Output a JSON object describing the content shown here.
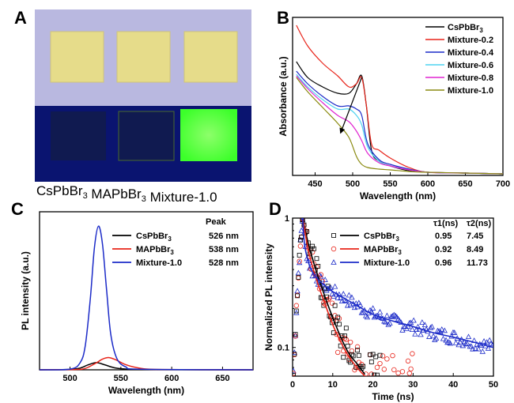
{
  "photo": {
    "panel_label": "A",
    "caption": "CsPbBr3 MAPbBr3 Mixture-1.0",
    "caption_parts": [
      {
        "text": "CsPbBr",
        "sub": "3"
      },
      {
        "text": " MAPbBr",
        "sub": "3"
      },
      {
        "text": " Mixture-1.0",
        "sub": ""
      }
    ],
    "colors": {
      "daylight_background": "#b9b8e0",
      "film_daylight": "#e6dc8a",
      "uv_background": "#0a1470",
      "film_uv_dark": "#101a50",
      "film_uv_green": "#3cff2a"
    }
  },
  "chart_data": [
    {
      "panel": "B",
      "type": "line",
      "xlabel": "Wavelength (nm)",
      "ylabel": "Absorbance (a.u.)",
      "xlim": [
        420,
        700
      ],
      "ylim": [
        0,
        1
      ],
      "xticks": [
        450,
        500,
        550,
        600,
        650,
        700
      ],
      "yticks": [],
      "legend_position": "top-right",
      "annotation": "arrow from the 512 nm peak down to ~485 nm",
      "series": [
        {
          "name": "CsPbBr3",
          "color": "#000000",
          "x": [
            425,
            440,
            460,
            480,
            495,
            505,
            512,
            518,
            525,
            535,
            550,
            575,
            600,
            650,
            700
          ],
          "y": [
            0.72,
            0.62,
            0.56,
            0.52,
            0.52,
            0.58,
            0.63,
            0.45,
            0.16,
            0.09,
            0.06,
            0.03,
            0.02,
            0.015,
            0.01
          ]
        },
        {
          "name": "Mixture-0.2",
          "color": "#e8241a",
          "x": [
            425,
            440,
            460,
            480,
            495,
            505,
            512,
            518,
            525,
            535,
            550,
            575,
            600,
            650,
            700
          ],
          "y": [
            0.95,
            0.82,
            0.71,
            0.63,
            0.56,
            0.58,
            0.62,
            0.45,
            0.2,
            0.16,
            0.11,
            0.05,
            0.02,
            0.015,
            0.01
          ]
        },
        {
          "name": "Mixture-0.4",
          "color": "#1c2bc8",
          "x": [
            425,
            440,
            460,
            480,
            495,
            505,
            512,
            520,
            535,
            550,
            575,
            600,
            650,
            700
          ],
          "y": [
            0.66,
            0.58,
            0.5,
            0.44,
            0.44,
            0.42,
            0.38,
            0.2,
            0.1,
            0.07,
            0.04,
            0.02,
            0.015,
            0.01
          ]
        },
        {
          "name": "Mixture-0.6",
          "color": "#4fd3f0",
          "x": [
            425,
            440,
            460,
            480,
            495,
            505,
            512,
            520,
            535,
            550,
            575,
            600,
            650,
            700
          ],
          "y": [
            0.64,
            0.56,
            0.48,
            0.42,
            0.42,
            0.38,
            0.32,
            0.18,
            0.09,
            0.06,
            0.035,
            0.02,
            0.015,
            0.01
          ]
        },
        {
          "name": "Mixture-0.8",
          "color": "#e025d0",
          "x": [
            425,
            440,
            460,
            480,
            495,
            505,
            512,
            520,
            535,
            550,
            575,
            600,
            650,
            700
          ],
          "y": [
            0.63,
            0.55,
            0.46,
            0.38,
            0.34,
            0.28,
            0.22,
            0.14,
            0.08,
            0.06,
            0.035,
            0.02,
            0.015,
            0.01
          ]
        },
        {
          "name": "Mixture-1.0",
          "color": "#8a8a10",
          "x": [
            425,
            440,
            460,
            480,
            495,
            505,
            512,
            520,
            535,
            550,
            575,
            600,
            650,
            700
          ],
          "y": [
            0.62,
            0.53,
            0.43,
            0.33,
            0.24,
            0.12,
            0.07,
            0.05,
            0.04,
            0.035,
            0.025,
            0.02,
            0.015,
            0.01
          ]
        }
      ]
    },
    {
      "panel": "C",
      "type": "line",
      "xlabel": "Wavelength (nm)",
      "ylabel": "PL intensity (a.u.)",
      "xlim": [
        470,
        680
      ],
      "ylim": [
        0,
        1.1
      ],
      "xticks": [
        500,
        550,
        600,
        650
      ],
      "yticks": [],
      "legend_position": "top-right",
      "legend_header": "Peak",
      "series": [
        {
          "name": "CsPbBr3",
          "peak": "526 nm",
          "color": "#000000",
          "x": [
            470,
            500,
            510,
            518,
            526,
            534,
            545,
            560,
            580,
            680
          ],
          "y": [
            0.0,
            0.003,
            0.012,
            0.035,
            0.05,
            0.035,
            0.012,
            0.003,
            0.001,
            0.0
          ]
        },
        {
          "name": "MAPbBr3",
          "peak": "538 nm",
          "color": "#e8241a",
          "x": [
            470,
            505,
            515,
            525,
            532,
            538,
            545,
            555,
            570,
            590,
            680
          ],
          "y": [
            0.0,
            0.002,
            0.01,
            0.045,
            0.075,
            0.085,
            0.07,
            0.035,
            0.01,
            0.002,
            0.0
          ]
        },
        {
          "name": "Mixture-1.0",
          "peak": "528 nm",
          "color": "#1c2bc8",
          "x": [
            470,
            500,
            510,
            515,
            520,
            524,
            528,
            532,
            536,
            540,
            546,
            555,
            570,
            680
          ],
          "y": [
            0.0,
            0.005,
            0.05,
            0.17,
            0.5,
            0.85,
            1.0,
            0.87,
            0.55,
            0.25,
            0.08,
            0.02,
            0.004,
            0.0
          ]
        }
      ]
    },
    {
      "panel": "D",
      "type": "scatter",
      "xlabel": "Time (ns)",
      "ylabel": "Normalized PL intensity",
      "xlim": [
        0,
        50
      ],
      "ylim": [
        0.06,
        1
      ],
      "yscale": "log",
      "xticks": [
        0,
        10,
        20,
        30,
        40,
        50
      ],
      "yticks": [
        0.1,
        1
      ],
      "yticklabels": [
        "0.1",
        "1"
      ],
      "legend_position": "top-right",
      "legend_headers": [
        "τ1(ns)",
        "τ2(ns)"
      ],
      "series": [
        {
          "name": "CsPbBr3",
          "tau1": "0.95",
          "tau2": "7.45",
          "marker": "square",
          "color": "#000000",
          "fit_x": [
            2.5,
            4,
            6,
            8,
            10,
            12,
            14,
            16,
            18
          ],
          "fit_y": [
            1.0,
            0.62,
            0.38,
            0.25,
            0.17,
            0.12,
            0.09,
            0.075,
            0.062
          ]
        },
        {
          "name": "MAPbBr3",
          "tau1": "0.92",
          "tau2": "8.49",
          "marker": "circle",
          "color": "#e8241a",
          "fit_x": [
            2.5,
            4,
            6,
            8,
            10,
            12,
            14,
            16,
            18
          ],
          "fit_y": [
            1.0,
            0.55,
            0.33,
            0.22,
            0.15,
            0.11,
            0.085,
            0.07,
            0.06
          ]
        },
        {
          "name": "Mixture-1.0",
          "tau1": "0.96",
          "tau2": "11.73",
          "marker": "triangle",
          "color": "#1c2bc8",
          "fit_x": [
            2.5,
            3,
            4,
            5,
            7,
            10,
            15,
            20,
            25,
            30,
            35,
            40,
            45,
            50
          ],
          "fit_y": [
            1.0,
            0.62,
            0.45,
            0.38,
            0.32,
            0.27,
            0.22,
            0.18,
            0.16,
            0.145,
            0.13,
            0.12,
            0.11,
            0.1
          ]
        }
      ]
    }
  ]
}
